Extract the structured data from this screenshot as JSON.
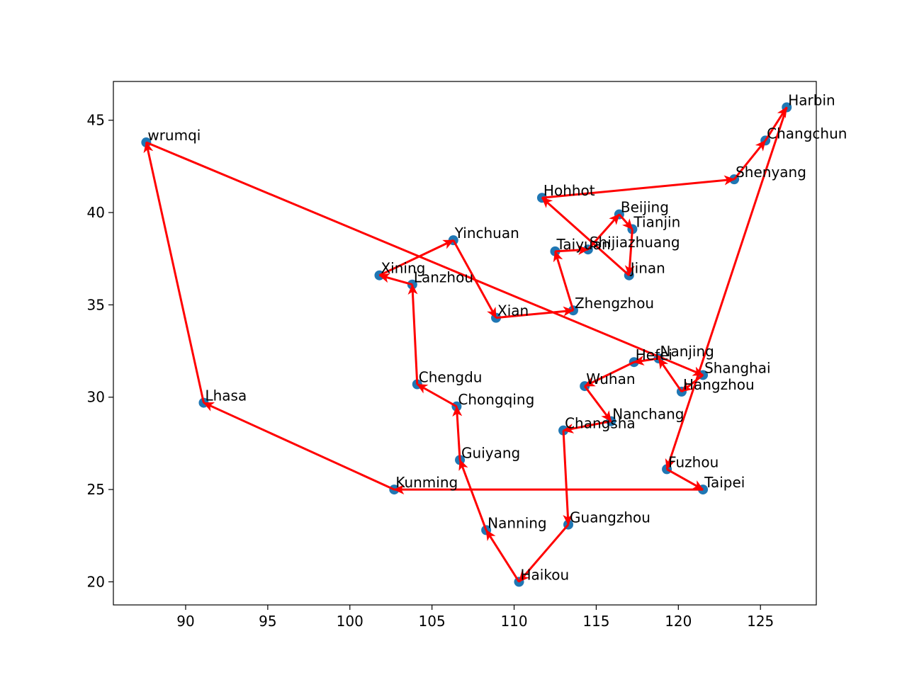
{
  "chart_data": {
    "type": "scatter",
    "title": "",
    "xlabel": "",
    "ylabel": "",
    "xlim": [
      85.6,
      128.4
    ],
    "ylim": [
      18.75,
      47.1
    ],
    "xticks": [
      90,
      95,
      100,
      105,
      110,
      115,
      120,
      125
    ],
    "yticks": [
      20,
      25,
      30,
      35,
      40,
      45
    ],
    "grid": false,
    "colors": {
      "points": "#1f77b4",
      "route": "#ff0000"
    },
    "points": [
      {
        "name": "wrumqi",
        "x": 87.6,
        "y": 43.8
      },
      {
        "name": "Lhasa",
        "x": 91.1,
        "y": 29.7
      },
      {
        "name": "Kunming",
        "x": 102.7,
        "y": 25.0
      },
      {
        "name": "Taipei",
        "x": 121.5,
        "y": 25.0
      },
      {
        "name": "Fuzhou",
        "x": 119.3,
        "y": 26.1
      },
      {
        "name": "Harbin",
        "x": 126.6,
        "y": 45.7
      },
      {
        "name": "Changchun",
        "x": 125.3,
        "y": 43.9
      },
      {
        "name": "Shenyang",
        "x": 123.4,
        "y": 41.8
      },
      {
        "name": "Hohhot",
        "x": 111.7,
        "y": 40.8
      },
      {
        "name": "Jinan",
        "x": 117.0,
        "y": 36.6
      },
      {
        "name": "Tianjin",
        "x": 117.2,
        "y": 39.1
      },
      {
        "name": "Beijing",
        "x": 116.4,
        "y": 39.9
      },
      {
        "name": "Shijiazhuang",
        "x": 114.5,
        "y": 38.0
      },
      {
        "name": "Taiyuan",
        "x": 112.5,
        "y": 37.9
      },
      {
        "name": "Zhengzhou",
        "x": 113.6,
        "y": 34.7
      },
      {
        "name": "Xian",
        "x": 108.9,
        "y": 34.3
      },
      {
        "name": "Yinchuan",
        "x": 106.3,
        "y": 38.5
      },
      {
        "name": "Xining",
        "x": 101.8,
        "y": 36.6
      },
      {
        "name": "Lanzhou",
        "x": 103.8,
        "y": 36.1
      },
      {
        "name": "Chengdu",
        "x": 104.1,
        "y": 30.7
      },
      {
        "name": "Chongqing",
        "x": 106.5,
        "y": 29.5
      },
      {
        "name": "Guiyang",
        "x": 106.7,
        "y": 26.6
      },
      {
        "name": "Nanning",
        "x": 108.3,
        "y": 22.8
      },
      {
        "name": "Haikou",
        "x": 110.3,
        "y": 20.0
      },
      {
        "name": "Guangzhou",
        "x": 113.3,
        "y": 23.1
      },
      {
        "name": "Changsha",
        "x": 113.0,
        "y": 28.2
      },
      {
        "name": "Nanchang",
        "x": 115.9,
        "y": 28.7
      },
      {
        "name": "Wuhan",
        "x": 114.3,
        "y": 30.6
      },
      {
        "name": "Hefei",
        "x": 117.3,
        "y": 31.9
      },
      {
        "name": "Nanjing",
        "x": 118.8,
        "y": 32.1
      },
      {
        "name": "Hangzhou",
        "x": 120.2,
        "y": 30.3
      },
      {
        "name": "Shanghai",
        "x": 121.5,
        "y": 31.2
      }
    ],
    "route": [
      "wrumqi",
      "Shanghai",
      "Hangzhou",
      "Nanjing",
      "Hefei",
      "Wuhan",
      "Nanchang",
      "Changsha",
      "Guangzhou",
      "Haikou",
      "Nanning",
      "Guiyang",
      "Chongqing",
      "Chengdu",
      "Lanzhou",
      "Xining",
      "Yinchuan",
      "Xian",
      "Zhengzhou",
      "Taiyuan",
      "Shijiazhuang",
      "Beijing",
      "Tianjin",
      "Jinan",
      "Hohhot",
      "Shenyang",
      "Changchun",
      "Harbin",
      "Fuzhou",
      "Taipei",
      "Kunming",
      "Lhasa",
      "wrumqi"
    ]
  }
}
